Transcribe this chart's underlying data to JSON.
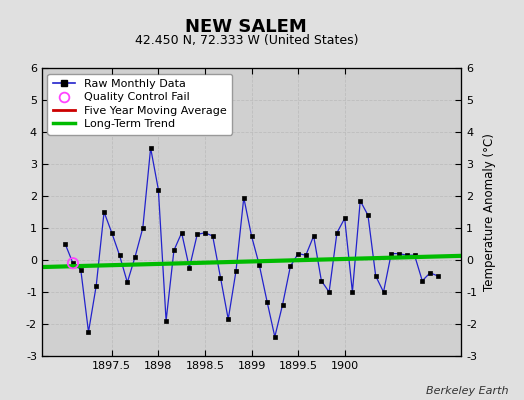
{
  "title": "NEW SALEM",
  "subtitle": "42.450 N, 72.333 W (United States)",
  "credit": "Berkeley Earth",
  "ylabel": "Temperature Anomaly (°C)",
  "background_color": "#e0e0e0",
  "plot_bg_color": "#d0d0d0",
  "ylim": [
    -3,
    6
  ],
  "yticks": [
    -3,
    -2,
    -1,
    0,
    1,
    2,
    3,
    4,
    5,
    6
  ],
  "xlim": [
    1896.75,
    1901.25
  ],
  "xticks": [
    1897.5,
    1898.0,
    1898.5,
    1899.0,
    1899.5,
    1900.0
  ],
  "xticklabels": [
    "1897.5",
    "1898",
    "1898.5",
    "1899",
    "1899.5",
    "1900"
  ],
  "raw_x": [
    1897.0,
    1897.083,
    1897.167,
    1897.25,
    1897.333,
    1897.417,
    1897.5,
    1897.583,
    1897.667,
    1897.75,
    1897.833,
    1897.917,
    1898.0,
    1898.083,
    1898.167,
    1898.25,
    1898.333,
    1898.417,
    1898.5,
    1898.583,
    1898.667,
    1898.75,
    1898.833,
    1898.917,
    1899.0,
    1899.083,
    1899.167,
    1899.25,
    1899.333,
    1899.417,
    1899.5,
    1899.583,
    1899.667,
    1899.75,
    1899.833,
    1899.917,
    1900.0,
    1900.083,
    1900.167,
    1900.25,
    1900.333,
    1900.417,
    1900.5,
    1900.583,
    1900.667,
    1900.75,
    1900.833,
    1900.917,
    1901.0
  ],
  "raw_y": [
    0.5,
    -0.1,
    -0.3,
    -2.25,
    -0.8,
    1.5,
    0.85,
    0.15,
    -0.7,
    0.1,
    1.0,
    3.5,
    2.2,
    -1.9,
    0.3,
    0.85,
    -0.25,
    0.8,
    0.85,
    0.75,
    -0.55,
    -1.85,
    -0.35,
    1.95,
    0.75,
    -0.15,
    -1.3,
    -2.4,
    -1.4,
    -0.2,
    0.2,
    0.15,
    0.75,
    -0.65,
    -1.0,
    0.85,
    1.3,
    -1.0,
    1.85,
    1.4,
    -0.5,
    -1.0,
    0.2,
    0.2,
    0.15,
    0.15,
    -0.65,
    -0.4,
    -0.5
  ],
  "qc_fail_x": [
    1897.083
  ],
  "qc_fail_y": [
    -0.1
  ],
  "trend_x": [
    1896.75,
    1901.25
  ],
  "trend_y": [
    -0.22,
    0.13
  ],
  "line_color": "#2222cc",
  "marker_color": "#000000",
  "qc_color": "#ff44ff",
  "trend_color": "#00bb00",
  "mavg_color": "#cc0000",
  "grid_color": "#bbbbbb",
  "title_fontsize": 13,
  "subtitle_fontsize": 9,
  "tick_fontsize": 8,
  "legend_fontsize": 8
}
